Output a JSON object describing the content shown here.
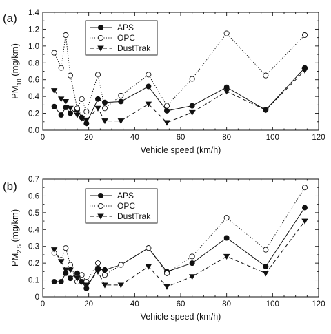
{
  "chart_data": [
    {
      "type": "scatter",
      "panel_label": "(a)",
      "xlabel": "Vehicle speed (km/h)",
      "ylabel_main": "PM",
      "ylabel_sub": "10",
      "ylabel_unit": "(mg/km)",
      "xlim": [
        0,
        120
      ],
      "ylim": [
        0,
        1.4
      ],
      "xticks": [
        0,
        20,
        40,
        60,
        80,
        100,
        120
      ],
      "yticks": [
        0,
        0.2,
        0.4,
        0.6,
        0.8,
        1.0,
        1.2,
        1.4
      ],
      "ytick_labels": [
        "0.0",
        "0.2",
        "0.4",
        "0.6",
        "0.8",
        "1.0",
        "1.2",
        "1.4"
      ],
      "grid": false,
      "legend_position": "top-left",
      "series": [
        {
          "name": "APS",
          "marker": "filled-circle",
          "line": "solid",
          "color": "#111111",
          "points": [
            [
              5,
              0.28
            ],
            [
              8,
              0.18
            ],
            [
              10,
              0.27
            ],
            [
              12,
              0.2
            ],
            [
              15,
              0.24
            ],
            [
              17,
              0.15
            ],
            [
              19,
              0.08
            ],
            [
              24,
              0.37
            ],
            [
              27,
              0.33
            ],
            [
              34,
              0.34
            ],
            [
              46,
              0.52
            ],
            [
              54,
              0.23
            ],
            [
              65,
              0.29
            ],
            [
              80,
              0.51
            ],
            [
              97,
              0.24
            ],
            [
              114,
              0.74
            ]
          ]
        },
        {
          "name": "OPC",
          "marker": "open-circle",
          "line": "dotted",
          "color": "#111111",
          "points": [
            [
              5,
              0.92
            ],
            [
              8,
              0.74
            ],
            [
              10,
              1.13
            ],
            [
              12,
              0.65
            ],
            [
              15,
              0.26
            ],
            [
              17,
              0.37
            ],
            [
              19,
              0.22
            ],
            [
              24,
              0.66
            ],
            [
              27,
              0.26
            ],
            [
              34,
              0.41
            ],
            [
              46,
              0.66
            ],
            [
              54,
              0.29
            ],
            [
              65,
              0.61
            ],
            [
              80,
              1.15
            ],
            [
              97,
              0.65
            ],
            [
              114,
              1.13
            ]
          ]
        },
        {
          "name": "DustTrak",
          "marker": "filled-triangle-down",
          "line": "dashed",
          "color": "#111111",
          "points": [
            [
              5,
              0.47
            ],
            [
              8,
              0.37
            ],
            [
              10,
              0.34
            ],
            [
              12,
              0.26
            ],
            [
              15,
              0.18
            ],
            [
              17,
              0.14
            ],
            [
              19,
              0.12
            ],
            [
              24,
              0.26
            ],
            [
              27,
              0.11
            ],
            [
              34,
              0.11
            ],
            [
              46,
              0.31
            ],
            [
              54,
              0.09
            ],
            [
              65,
              0.21
            ],
            [
              80,
              0.46
            ],
            [
              97,
              0.24
            ],
            [
              114,
              0.71
            ]
          ]
        }
      ]
    },
    {
      "type": "scatter",
      "panel_label": "(b)",
      "xlabel": "Vehicle speed (km/h)",
      "ylabel_main": "PM",
      "ylabel_sub": "2.5",
      "ylabel_unit": "(mg/km)",
      "xlim": [
        0,
        120
      ],
      "ylim": [
        0,
        0.7
      ],
      "xticks": [
        0,
        20,
        40,
        60,
        80,
        100,
        120
      ],
      "yticks": [
        0,
        0.1,
        0.2,
        0.3,
        0.4,
        0.5,
        0.6,
        0.7
      ],
      "ytick_labels": [
        "0",
        "0.1",
        "0.2",
        "0.3",
        "0.4",
        "0.5",
        "0.6",
        "0.7"
      ],
      "grid": false,
      "legend_position": "top-left",
      "series": [
        {
          "name": "APS",
          "marker": "filled-circle",
          "line": "solid",
          "color": "#111111",
          "points": [
            [
              5,
              0.09
            ],
            [
              8,
              0.09
            ],
            [
              10,
              0.14
            ],
            [
              12,
              0.11
            ],
            [
              15,
              0.14
            ],
            [
              17,
              0.09
            ],
            [
              19,
              0.05
            ],
            [
              24,
              0.17
            ],
            [
              27,
              0.16
            ],
            [
              34,
              0.19
            ],
            [
              46,
              0.29
            ],
            [
              54,
              0.15
            ],
            [
              65,
              0.2
            ],
            [
              80,
              0.35
            ],
            [
              97,
              0.18
            ],
            [
              114,
              0.53
            ]
          ]
        },
        {
          "name": "OPC",
          "marker": "open-circle",
          "line": "dotted",
          "color": "#111111",
          "points": [
            [
              5,
              0.26
            ],
            [
              8,
              0.22
            ],
            [
              10,
              0.29
            ],
            [
              12,
              0.19
            ],
            [
              15,
              0.09
            ],
            [
              17,
              0.13
            ],
            [
              19,
              0.09
            ],
            [
              24,
              0.2
            ],
            [
              27,
              0.13
            ],
            [
              34,
              0.19
            ],
            [
              46,
              0.29
            ],
            [
              54,
              0.14
            ],
            [
              65,
              0.24
            ],
            [
              80,
              0.47
            ],
            [
              97,
              0.28
            ],
            [
              114,
              0.65
            ]
          ]
        },
        {
          "name": "DustTrak",
          "marker": "filled-triangle-down",
          "line": "dashed",
          "color": "#111111",
          "points": [
            [
              5,
              0.28
            ],
            [
              8,
              0.21
            ],
            [
              10,
              0.16
            ],
            [
              12,
              0.16
            ],
            [
              15,
              0.11
            ],
            [
              17,
              0.09
            ],
            [
              19,
              0.07
            ],
            [
              24,
              0.15
            ],
            [
              27,
              0.07
            ],
            [
              34,
              0.07
            ],
            [
              46,
              0.18
            ],
            [
              54,
              0.06
            ],
            [
              65,
              0.12
            ],
            [
              80,
              0.24
            ],
            [
              97,
              0.14
            ],
            [
              114,
              0.45
            ]
          ]
        }
      ]
    }
  ]
}
